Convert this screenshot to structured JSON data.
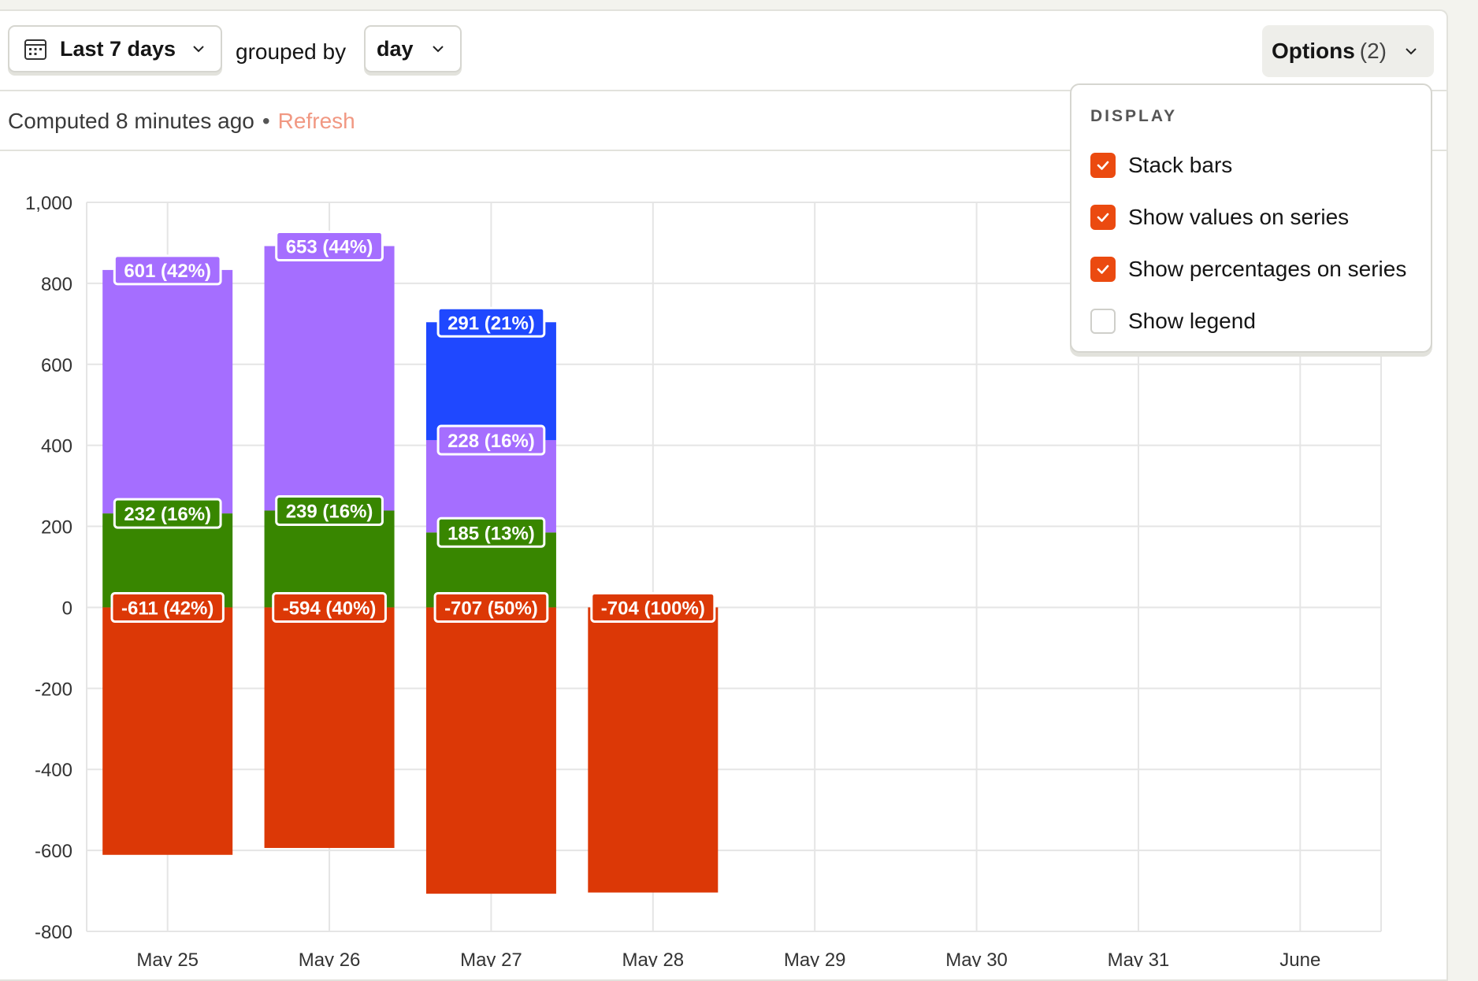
{
  "toolbar": {
    "date_range": "Last 7 days",
    "grouped_by_label": "grouped by",
    "interval": "day",
    "options_label": "Options",
    "options_count": "(2)"
  },
  "status": {
    "computed": "Computed 8 minutes ago",
    "separator": "•",
    "refresh": "Refresh"
  },
  "display_menu": {
    "title": "DISPLAY",
    "options": [
      {
        "label": "Stack bars",
        "checked": true
      },
      {
        "label": "Show values on series",
        "checked": true
      },
      {
        "label": "Show percentages on series",
        "checked": true
      },
      {
        "label": "Show legend",
        "checked": false
      }
    ]
  },
  "colors": {
    "purple": "#a56eff",
    "blue": "#1f48ff",
    "green": "#388600",
    "red": "#dc3806",
    "accent": "#eb4a10"
  },
  "chart_data": {
    "type": "bar",
    "stacked": true,
    "categories": [
      "May 25",
      "May 26",
      "May 27",
      "May 28",
      "May 29",
      "May 30",
      "May 31",
      "June"
    ],
    "ylim": [
      -800,
      1000
    ],
    "yticks": [
      "1,000",
      "800",
      "600",
      "400",
      "200",
      "0",
      "-200",
      "-400",
      "-600",
      "-800"
    ],
    "grid": true,
    "legend": false,
    "series": [
      {
        "color": "#dc3806",
        "values": [
          -611,
          -594,
          -707,
          -704,
          null,
          null,
          null,
          null
        ],
        "labels": [
          "-611 (42%)",
          "-594 (40%)",
          "-707 (50%)",
          "-704 (100%)"
        ]
      },
      {
        "color": "#388600",
        "values": [
          232,
          239,
          185,
          null,
          null,
          null,
          null,
          null
        ],
        "labels": [
          "232 (16%)",
          "239 (16%)",
          "185 (13%)"
        ]
      },
      {
        "color": "#a56eff",
        "values": [
          601,
          653,
          228,
          null,
          null,
          null,
          null,
          null
        ],
        "labels": [
          "601 (42%)",
          "653 (44%)",
          "228 (16%)"
        ]
      },
      {
        "color": "#1f48ff",
        "values": [
          null,
          null,
          291,
          null,
          null,
          null,
          null,
          null
        ],
        "labels": [
          "",
          "",
          "291 (21%)"
        ]
      }
    ]
  }
}
